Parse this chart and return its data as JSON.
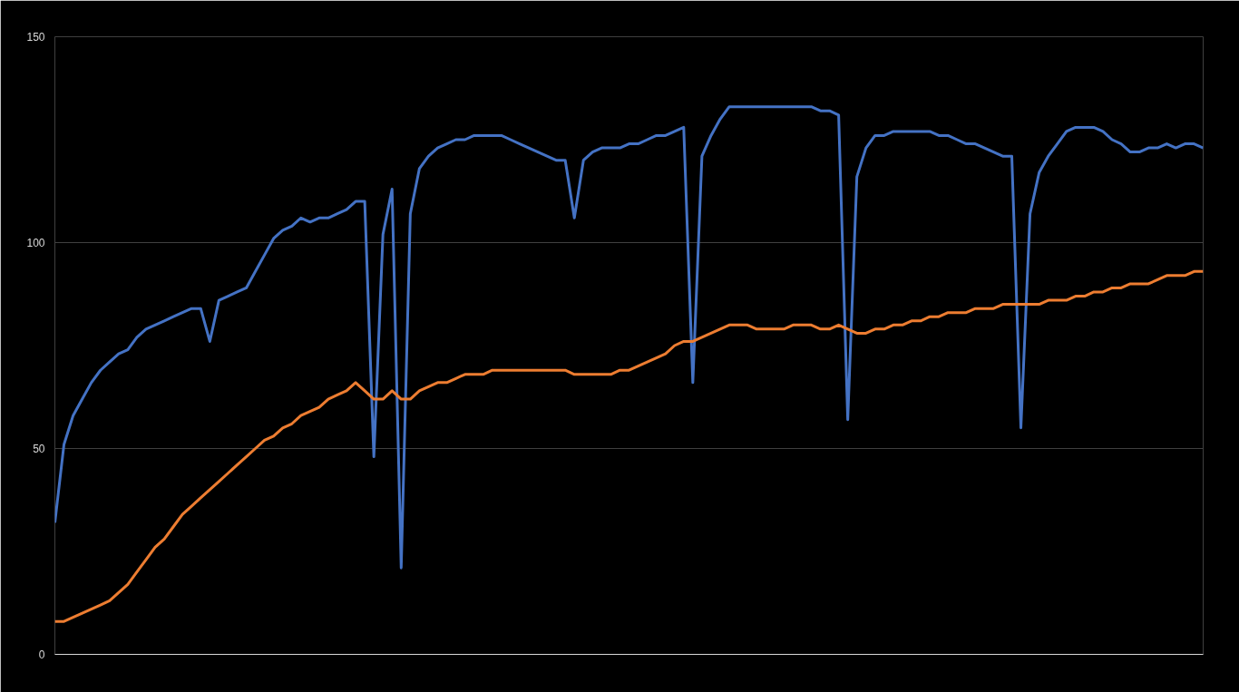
{
  "chart_data": {
    "type": "line",
    "categories": [
      null,
      null,
      null,
      null,
      null,
      null,
      null,
      null,
      null,
      null,
      null,
      null,
      null,
      null,
      null,
      null,
      null,
      null,
      null,
      null,
      null,
      null,
      null,
      null,
      null,
      null,
      null,
      null,
      null,
      null,
      null,
      null,
      null,
      null,
      null,
      null,
      null,
      null,
      null,
      null,
      null,
      null,
      null,
      null,
      null,
      null,
      null,
      null,
      null,
      null,
      null,
      null,
      null,
      null,
      null,
      null,
      null,
      null,
      null,
      null,
      null,
      null,
      null,
      null,
      null,
      null,
      null,
      null,
      null,
      null,
      null,
      null,
      null,
      null,
      null,
      null,
      null,
      null,
      null,
      null,
      null,
      null,
      null,
      null,
      null,
      null,
      null,
      null,
      null,
      null,
      null,
      null,
      null,
      null,
      null,
      null,
      null,
      null,
      null,
      null,
      null,
      null,
      null,
      null,
      null,
      null,
      null,
      null,
      null,
      null,
      null,
      null,
      null,
      null,
      null,
      null,
      null,
      null,
      null,
      null,
      null,
      null,
      null,
      null,
      null,
      null,
      null
    ],
    "series": [
      {
        "color": "#4472c4",
        "values": [
          32,
          51,
          58,
          62,
          66,
          69,
          71,
          73,
          74,
          77,
          79,
          80,
          81,
          82,
          83,
          84,
          84,
          76,
          86,
          87,
          88,
          89,
          93,
          97,
          101,
          103,
          104,
          106,
          105,
          106,
          106,
          107,
          108,
          110,
          110,
          48,
          102,
          113,
          21,
          107,
          118,
          121,
          123,
          124,
          125,
          125,
          126,
          126,
          126,
          126,
          125,
          124,
          123,
          122,
          121,
          120,
          120,
          106,
          120,
          122,
          123,
          123,
          123,
          124,
          124,
          125,
          126,
          126,
          127,
          128,
          66,
          121,
          126,
          130,
          133,
          133,
          133,
          133,
          133,
          133,
          133,
          133,
          133,
          133,
          132,
          132,
          131,
          57,
          116,
          123,
          126,
          126,
          127,
          127,
          127,
          127,
          127,
          126,
          126,
          125,
          124,
          124,
          123,
          122,
          121,
          121,
          55,
          107,
          117,
          121,
          124,
          127,
          128,
          128,
          128,
          127,
          125,
          124,
          122,
          122,
          123,
          123,
          124,
          123,
          124,
          124,
          123
        ]
      },
      {
        "color": "#ed7d31",
        "values": [
          8,
          8,
          9,
          10,
          11,
          12,
          13,
          15,
          17,
          20,
          23,
          26,
          28,
          31,
          34,
          36,
          38,
          40,
          42,
          44,
          46,
          48,
          50,
          52,
          53,
          55,
          56,
          58,
          59,
          60,
          62,
          63,
          64,
          66,
          64,
          62,
          62,
          64,
          62,
          62,
          64,
          65,
          66,
          66,
          67,
          68,
          68,
          68,
          69,
          69,
          69,
          69,
          69,
          69,
          69,
          69,
          69,
          68,
          68,
          68,
          68,
          68,
          69,
          69,
          70,
          71,
          72,
          73,
          75,
          76,
          76,
          77,
          78,
          79,
          80,
          80,
          80,
          79,
          79,
          79,
          79,
          80,
          80,
          80,
          79,
          79,
          80,
          79,
          78,
          78,
          79,
          79,
          80,
          80,
          81,
          81,
          82,
          82,
          83,
          83,
          83,
          84,
          84,
          84,
          85,
          85,
          85,
          85,
          85,
          86,
          86,
          86,
          87,
          87,
          88,
          88,
          89,
          89,
          90,
          90,
          90,
          91,
          92,
          92,
          92,
          93,
          93
        ]
      }
    ],
    "ylim": [
      0,
      150
    ],
    "yticks": [
      0,
      50,
      100,
      150
    ],
    "grid": "y",
    "tick_labels": "y",
    "marker": "none",
    "line_style": "solid"
  }
}
